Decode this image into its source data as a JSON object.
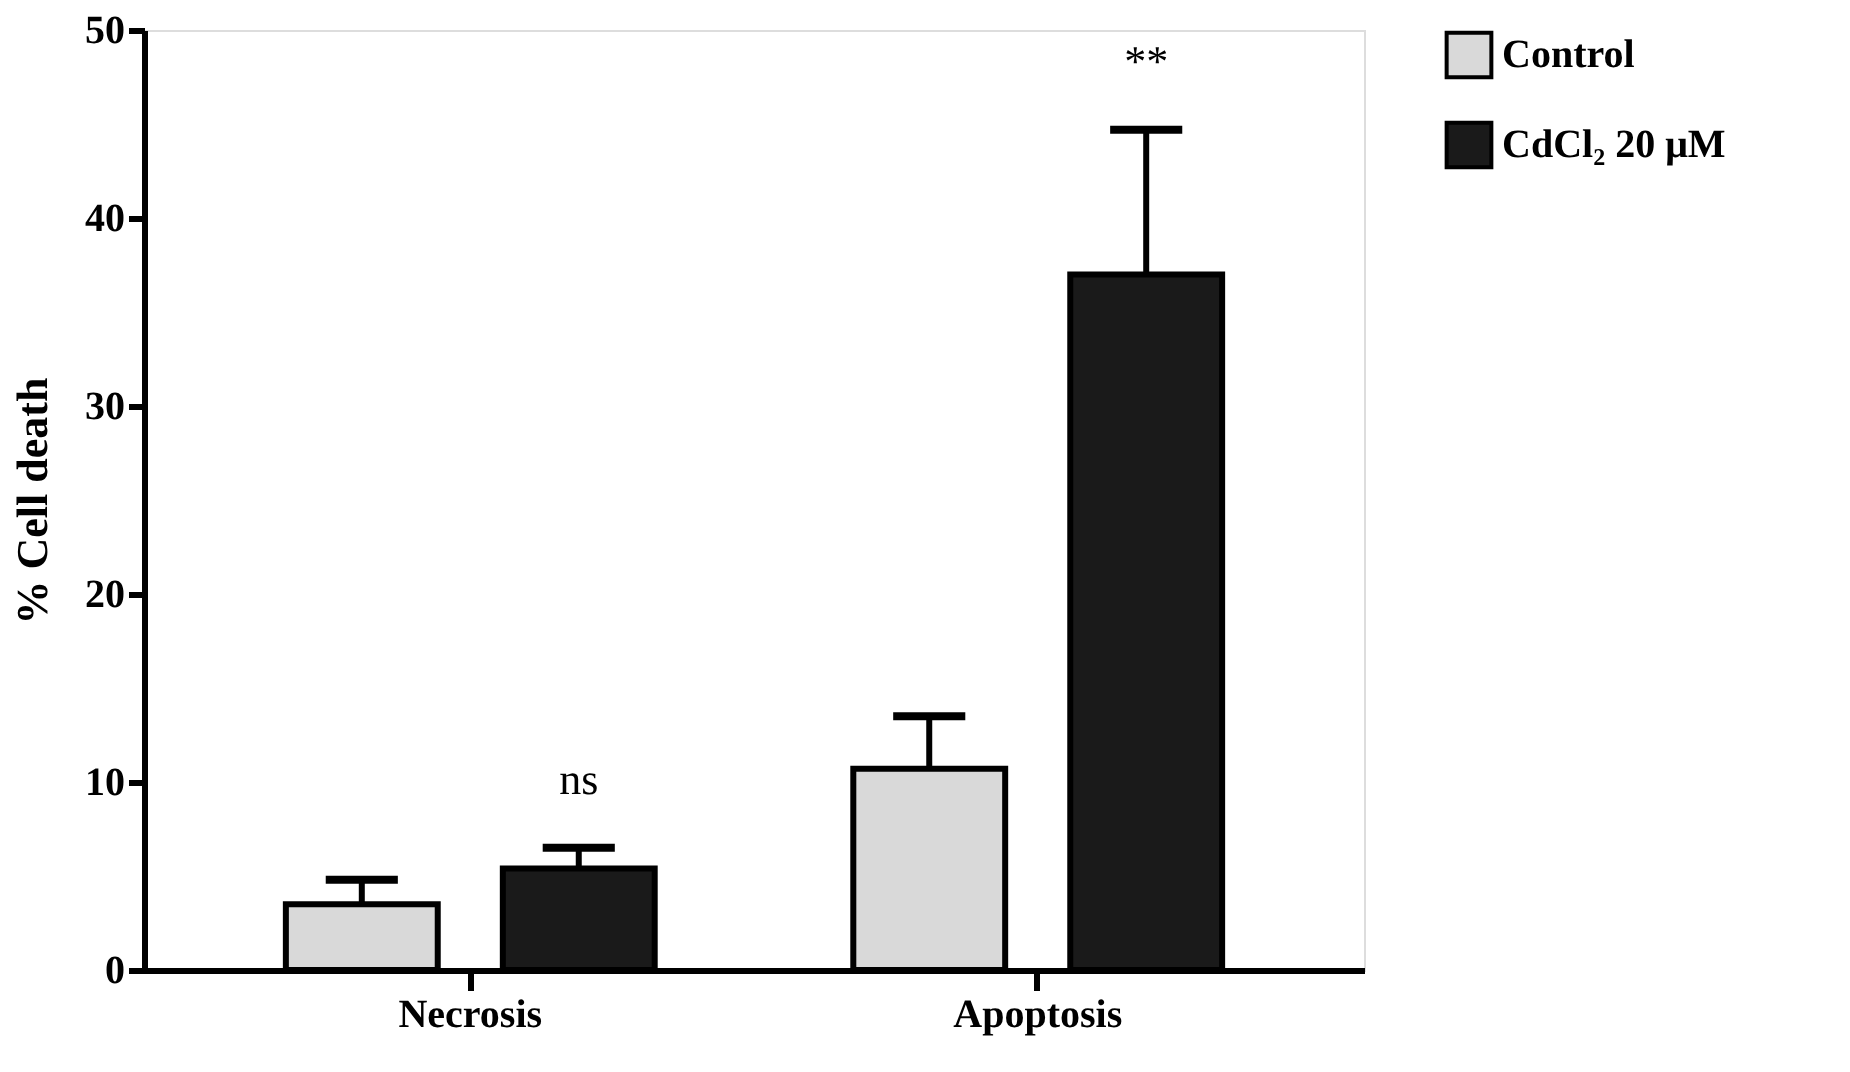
{
  "chart_data": {
    "type": "bar",
    "ylabel": "%  Cell death",
    "categories": [
      "Necrosis",
      "Apoptosis"
    ],
    "series": [
      {
        "name": "Control",
        "color": "#d9d9d9",
        "values": [
          3.5,
          10.7
        ],
        "errors": [
          1.3,
          2.8
        ]
      },
      {
        "name": "CdCl₂ 20 μM",
        "color": "#1a1a1a",
        "values": [
          5.4,
          37.0
        ],
        "errors": [
          1.1,
          7.7
        ]
      }
    ],
    "ylim": [
      0,
      50
    ],
    "yticks": [
      0,
      10,
      20,
      30,
      40,
      50
    ],
    "grid": false,
    "legend": "top right",
    "annotations": [
      "ns",
      "**"
    ]
  }
}
